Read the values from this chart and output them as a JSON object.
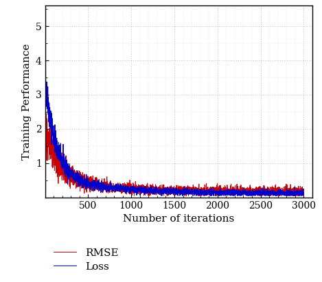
{
  "title": "",
  "xlabel": "Number of iterations",
  "ylabel": "Training Performance",
  "xlim": [
    0,
    3100
  ],
  "ylim": [
    0,
    5.6
  ],
  "xticks": [
    500,
    1000,
    1500,
    2000,
    2500,
    3000
  ],
  "yticks": [
    1,
    2,
    3,
    4,
    5
  ],
  "loss_color": "#0000cc",
  "rmse_color": "#cc0000",
  "n_points": 3000,
  "legend_labels": [
    "Loss",
    "RMSE"
  ],
  "figsize": [
    4.69,
    4.11
  ],
  "dpi": 100,
  "bg_color": "#ffffff",
  "grid_color": "#555555",
  "font_family": "serif"
}
